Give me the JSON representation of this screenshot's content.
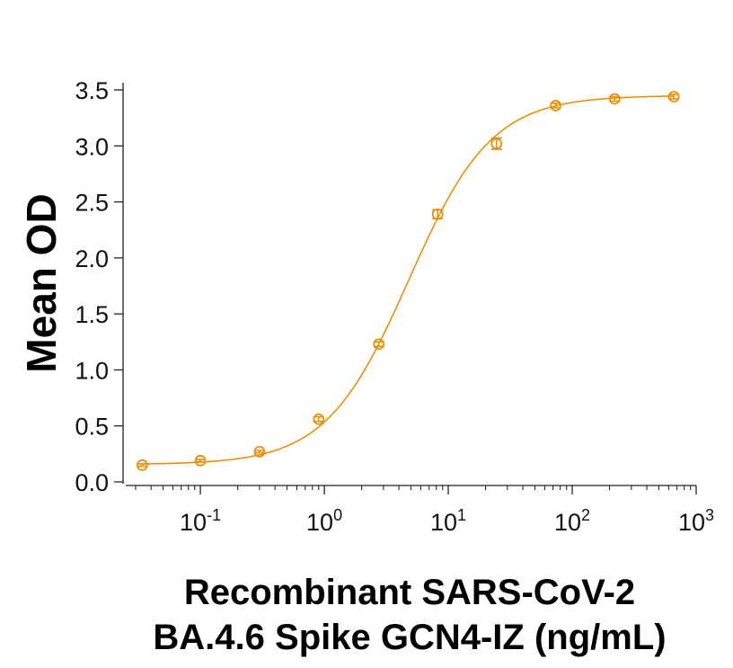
{
  "chart_data": {
    "type": "line",
    "title": "",
    "xscale": "log",
    "xlim": [
      0.025,
      1000
    ],
    "ylim": [
      0,
      3.5
    ],
    "ylabel": "Mean OD",
    "xlabel_lines": [
      "Recombinant SARS-CoV-2",
      "BA.4.6 Spike GCN4-IZ (ng/mL)"
    ],
    "y_ticks": [
      {
        "value": 0.0,
        "label": "0.0"
      },
      {
        "value": 0.5,
        "label": "0.5"
      },
      {
        "value": 1.0,
        "label": "1.0"
      },
      {
        "value": 1.5,
        "label": "1.5"
      },
      {
        "value": 2.0,
        "label": "2.0"
      },
      {
        "value": 2.5,
        "label": "2.5"
      },
      {
        "value": 3.0,
        "label": "3.0"
      },
      {
        "value": 3.5,
        "label": "3.5"
      }
    ],
    "x_ticks": [
      {
        "value": 0.1,
        "base": "10",
        "exp": "-1"
      },
      {
        "value": 1,
        "base": "10",
        "exp": "0"
      },
      {
        "value": 10,
        "base": "10",
        "exp": "1"
      },
      {
        "value": 100,
        "base": "10",
        "exp": "2"
      },
      {
        "value": 1000,
        "base": "10",
        "exp": "3"
      }
    ],
    "series": [
      {
        "name": "Recombinant SARS-CoV-2 BA.4.6 Spike GCN4-IZ",
        "color": "#E8900C",
        "marker": "open-circle",
        "x": [
          0.034,
          0.1,
          0.3,
          0.9,
          2.75,
          8.2,
          24.5,
          73.5,
          220,
          660
        ],
        "y": [
          0.15,
          0.19,
          0.27,
          0.56,
          1.23,
          2.39,
          3.02,
          3.36,
          3.42,
          3.44
        ],
        "yerr": [
          0.01,
          0.01,
          0.01,
          0.02,
          0.02,
          0.04,
          0.05,
          0.02,
          0.02,
          0.02
        ]
      }
    ],
    "fit": {
      "model": "4PL",
      "bottom": 0.155,
      "top": 3.45,
      "ec50": 4.8,
      "hill": 1.3
    },
    "grid": false,
    "legend": "none"
  }
}
